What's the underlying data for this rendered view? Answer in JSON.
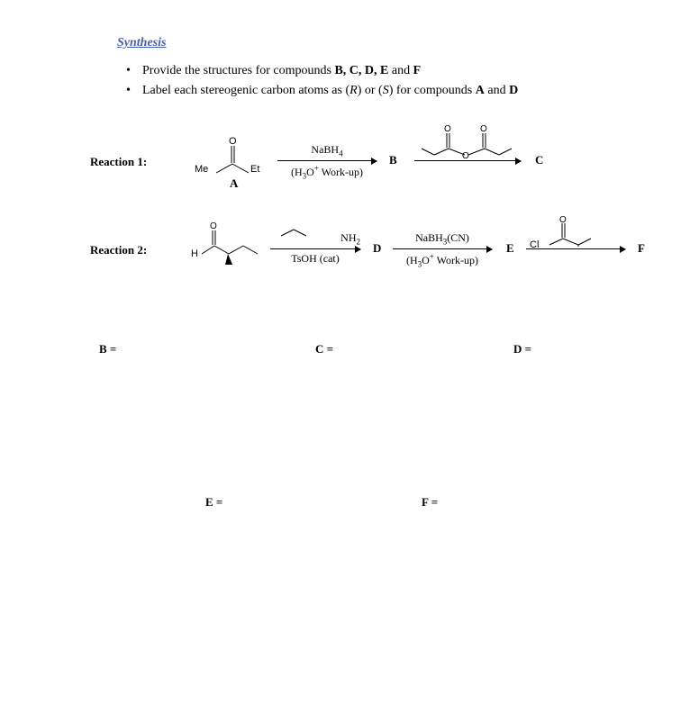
{
  "title": "Synthesis",
  "bullets": [
    {
      "pre": "Provide the structures for compounds ",
      "boldparts": "B, C, D, E",
      "mid": " and ",
      "last": "F"
    },
    {
      "pre": "Label each stereogenic carbon atoms as (",
      "r": "R",
      "mid1": ") or (",
      "s": "S",
      "mid2": ") for compounds ",
      "a": "A",
      "and": " and ",
      "d": "D"
    }
  ],
  "reaction1": {
    "label": "Reaction 1:",
    "arrow1_top": "NaBH<sub>4</sub>",
    "arrow1_bot": "(H<sub>3</sub>O<sup>+</sup> Work-up)",
    "B": "B",
    "C": "C",
    "structA_labels": {
      "Me": "Me",
      "Et": "Et",
      "A": "A"
    }
  },
  "reaction2": {
    "label": "Reaction 2:",
    "arrow1_top": "NH<sub>2</sub>",
    "arrow1_bot": "TsOH (cat)",
    "D": "D",
    "arrow2_top": "NaBH<sub>3</sub>(CN)",
    "arrow2_bot": "(H<sub>3</sub>O<sup>+</sup> Work-up)",
    "E": "E",
    "F": "F",
    "H": "H",
    "Cl": "Cl"
  },
  "answers": {
    "B": "B =",
    "C": "C =",
    "D": "D =",
    "E": "E =",
    "F": "F ="
  },
  "style": {
    "title_color": "#4a5eaa",
    "font": "Times New Roman"
  }
}
